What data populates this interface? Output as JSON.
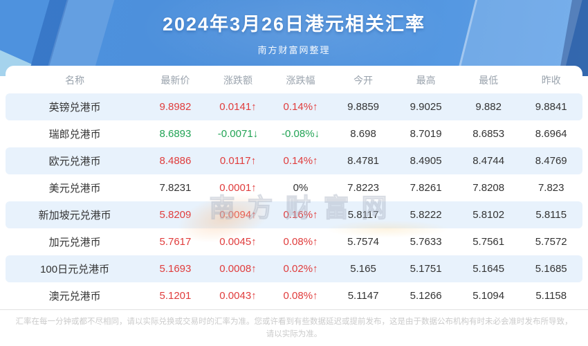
{
  "chart_data": {
    "type": "table",
    "title": "2024年3月26日港元相关汇率",
    "subtitle": "南方财富网整理",
    "columns": [
      "名称",
      "最新价",
      "涨跌额",
      "涨跌幅",
      "今开",
      "最高",
      "最低",
      "昨收"
    ],
    "rows": [
      {
        "name": "英镑兑港币",
        "latest": "9.8982",
        "latest_trend": "up",
        "change": "0.0141↑",
        "change_trend": "up",
        "change_pct": "0.14%↑",
        "pct_trend": "up",
        "open": "9.8859",
        "high": "9.9025",
        "low": "9.882",
        "prev_close": "9.8841"
      },
      {
        "name": "瑞郎兑港币",
        "latest": "8.6893",
        "latest_trend": "down",
        "change": "-0.0071↓",
        "change_trend": "down",
        "change_pct": "-0.08%↓",
        "pct_trend": "down",
        "open": "8.698",
        "high": "8.7019",
        "low": "8.6853",
        "prev_close": "8.6964"
      },
      {
        "name": "欧元兑港币",
        "latest": "8.4886",
        "latest_trend": "up",
        "change": "0.0117↑",
        "change_trend": "up",
        "change_pct": "0.14%↑",
        "pct_trend": "up",
        "open": "8.4781",
        "high": "8.4905",
        "low": "8.4744",
        "prev_close": "8.4769"
      },
      {
        "name": "美元兑港币",
        "latest": "7.8231",
        "latest_trend": "flat",
        "change": "0.0001↑",
        "change_trend": "up",
        "change_pct": "0%",
        "pct_trend": "flat",
        "open": "7.8223",
        "high": "7.8261",
        "low": "7.8208",
        "prev_close": "7.823"
      },
      {
        "name": "新加坡元兑港币",
        "latest": "5.8209",
        "latest_trend": "up",
        "change": "0.0094↑",
        "change_trend": "up",
        "change_pct": "0.16%↑",
        "pct_trend": "up",
        "open": "5.8117",
        "high": "5.8222",
        "low": "5.8102",
        "prev_close": "5.8115"
      },
      {
        "name": "加元兑港币",
        "latest": "5.7617",
        "latest_trend": "up",
        "change": "0.0045↑",
        "change_trend": "up",
        "change_pct": "0.08%↑",
        "pct_trend": "up",
        "open": "5.7574",
        "high": "5.7633",
        "low": "5.7561",
        "prev_close": "5.7572"
      },
      {
        "name": "100日元兑港币",
        "latest": "5.1693",
        "latest_trend": "up",
        "change": "0.0008↑",
        "change_trend": "up",
        "change_pct": "0.02%↑",
        "pct_trend": "up",
        "open": "5.165",
        "high": "5.1751",
        "low": "5.1645",
        "prev_close": "5.1685"
      },
      {
        "name": "澳元兑港币",
        "latest": "5.1201",
        "latest_trend": "up",
        "change": "0.0043↑",
        "change_trend": "up",
        "change_pct": "0.08%↑",
        "pct_trend": "up",
        "open": "5.1147",
        "high": "5.1266",
        "low": "5.1094",
        "prev_close": "5.1158"
      }
    ],
    "layout": {
      "grid": false,
      "alternating_rows": true
    }
  },
  "watermark": "南方财富网",
  "footer": {
    "disclaimer_line1": "汇率在每一分钟或都不尽相同，请以实际兑换或交易时的汇率为准。您或许看到有些数据延迟或提前发布，这是由于数据公布机构有时未必会准时发布所导致，",
    "disclaimer_line2": "请以实际为准。"
  },
  "colors": {
    "up_red": "#E03C3C",
    "down_green": "#21A354",
    "row_alt_blue": "#E8F2FC",
    "hero_blue": "#4C8FDB",
    "header_gray": "#9aa3ad"
  }
}
